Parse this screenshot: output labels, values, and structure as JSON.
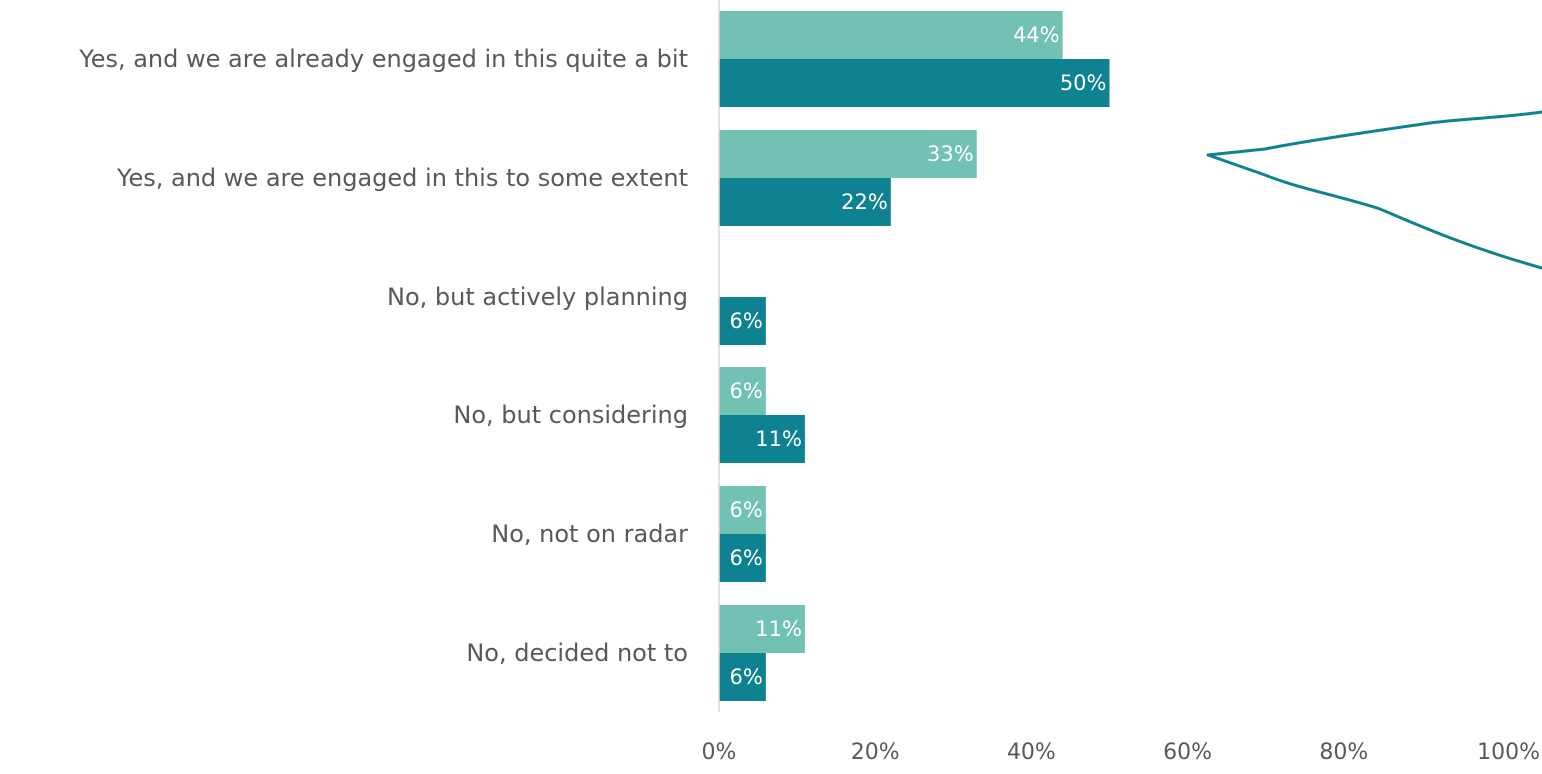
{
  "chart_data": {
    "type": "bar",
    "orientation": "horizontal",
    "categories": [
      "Yes, and we are already engaged in this quite a bit",
      "Yes, and we are engaged in this to some extent",
      "No, but actively planning",
      "No, but considering",
      "No, not on radar",
      "No, decided not to"
    ],
    "series": [
      {
        "color": "#71c2b2",
        "values": [
          44,
          33,
          0,
          6,
          6,
          11
        ],
        "data_labels": [
          "44%",
          "33%",
          "",
          "6%",
          "6%",
          "11%"
        ]
      },
      {
        "color": "#0e8290",
        "values": [
          50,
          22,
          6,
          11,
          6,
          6
        ],
        "data_labels": [
          "50%",
          "22%",
          "6%",
          "11%",
          "6%",
          "6%"
        ]
      }
    ],
    "x_ticks": [
      0,
      20,
      40,
      60,
      80,
      100
    ],
    "x_tick_labels": [
      "0%",
      "20%",
      "40%",
      "60%",
      "80%",
      "100%"
    ],
    "xlim": [
      0,
      100
    ],
    "title": "",
    "xlabel": "",
    "ylabel": "",
    "grid": false,
    "legend": "none",
    "annotation": {
      "type": "bracket",
      "color": "#0e8290",
      "groups": [
        0,
        1
      ]
    }
  }
}
